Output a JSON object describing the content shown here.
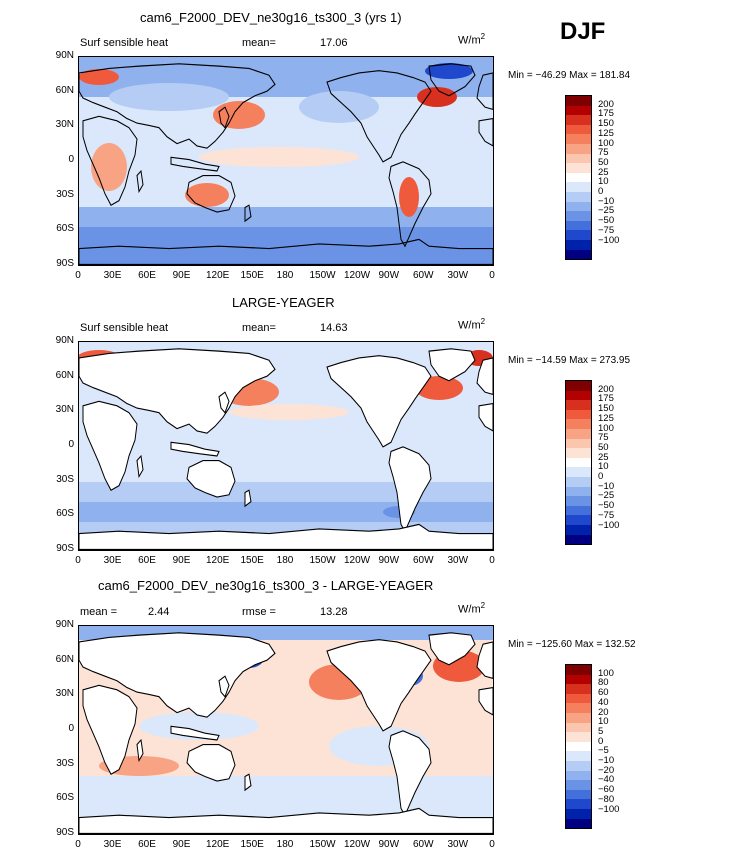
{
  "season_label": "DJF",
  "units": "W/m",
  "units_sup": "2",
  "lat_ticks": [
    "90N",
    "60N",
    "30N",
    "0",
    "30S",
    "60S",
    "90S"
  ],
  "lon_ticks": [
    "0",
    "30E",
    "60E",
    "90E",
    "120E",
    "150E",
    "180",
    "150W",
    "120W",
    "90W",
    "60W",
    "30W",
    "0"
  ],
  "panels": [
    {
      "title": "cam6_F2000_DEV_ne30g16_ts300_3 (yrs 1)",
      "left_label": "Surf sensible heat",
      "mid_label": "mean=",
      "mid_value": "17.06",
      "minmax": "Min = −46.29 Max = 181.84"
    },
    {
      "title": "LARGE-YEAGER",
      "left_label": "Surf sensible heat",
      "mid_label": "mean=",
      "mid_value": "14.63",
      "minmax": "Min = −14.59 Max = 273.95"
    },
    {
      "title": "cam6_F2000_DEV_ne30g16_ts300_3 - LARGE-YEAGER",
      "left_label": "mean =",
      "left_value": "2.44",
      "mid_label": "rmse =",
      "mid_value": "13.28",
      "minmax": "Min = −125.60 Max = 132.52"
    }
  ],
  "colorbar_abs": {
    "labels": [
      "200",
      "175",
      "150",
      "125",
      "100",
      "75",
      "50",
      "25",
      "10",
      "0",
      "−10",
      "−25",
      "−50",
      "−75",
      "−100"
    ],
    "colors": [
      "#7f0000",
      "#b30000",
      "#d7301f",
      "#ef5a3c",
      "#f4805e",
      "#f7a384",
      "#fac6ae",
      "#fde3d5",
      "#ffffff",
      "#dbe8fb",
      "#b5cdf5",
      "#8fb1ee",
      "#6a93e5",
      "#4470dc",
      "#1f48cc",
      "#0022aa",
      "#000080"
    ]
  },
  "colorbar_diff": {
    "labels": [
      "100",
      "80",
      "60",
      "40",
      "20",
      "10",
      "5",
      "0",
      "−5",
      "−10",
      "−20",
      "−40",
      "−60",
      "−80",
      "−100"
    ],
    "colors": [
      "#7f0000",
      "#b30000",
      "#d7301f",
      "#ef5a3c",
      "#f4805e",
      "#f7a384",
      "#fac6ae",
      "#fde3d5",
      "#ffffff",
      "#dbe8fb",
      "#b5cdf5",
      "#8fb1ee",
      "#6a93e5",
      "#4470dc",
      "#1f48cc",
      "#0022aa",
      "#000080"
    ]
  }
}
